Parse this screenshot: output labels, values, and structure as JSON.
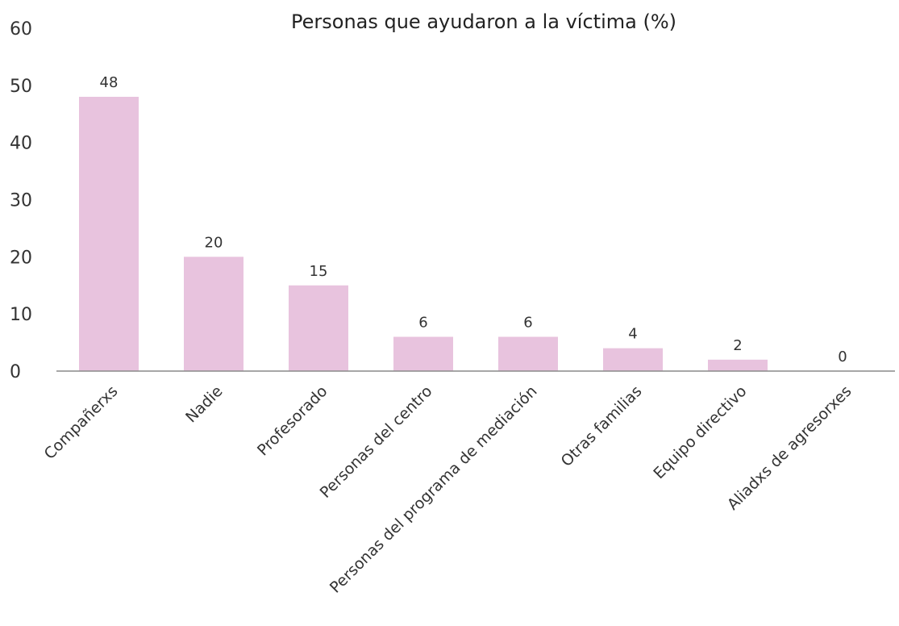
{
  "chart_data": {
    "type": "bar",
    "title": "Personas que ayudaron a la víctima (%)",
    "categories": [
      "Compañerxs",
      "Nadie",
      "Profesorado",
      "Personas del centro",
      "Personas del programa de mediación",
      "Otras familias",
      "Equipo directivo",
      "Aliadxs de agresorxes"
    ],
    "values": [
      48,
      20,
      15,
      6,
      6,
      4,
      2,
      0
    ],
    "data_labels": [
      "48",
      "20",
      "15",
      "6",
      "6",
      "4",
      "2",
      "0"
    ],
    "yticks": [
      "0",
      "10",
      "20",
      "30",
      "40",
      "50",
      "60"
    ],
    "ylim": [
      0,
      60
    ],
    "xlabel": "",
    "ylabel": "",
    "grid": false,
    "bar_color": "#e8c3de",
    "axis_color": "#8a8a8a"
  }
}
